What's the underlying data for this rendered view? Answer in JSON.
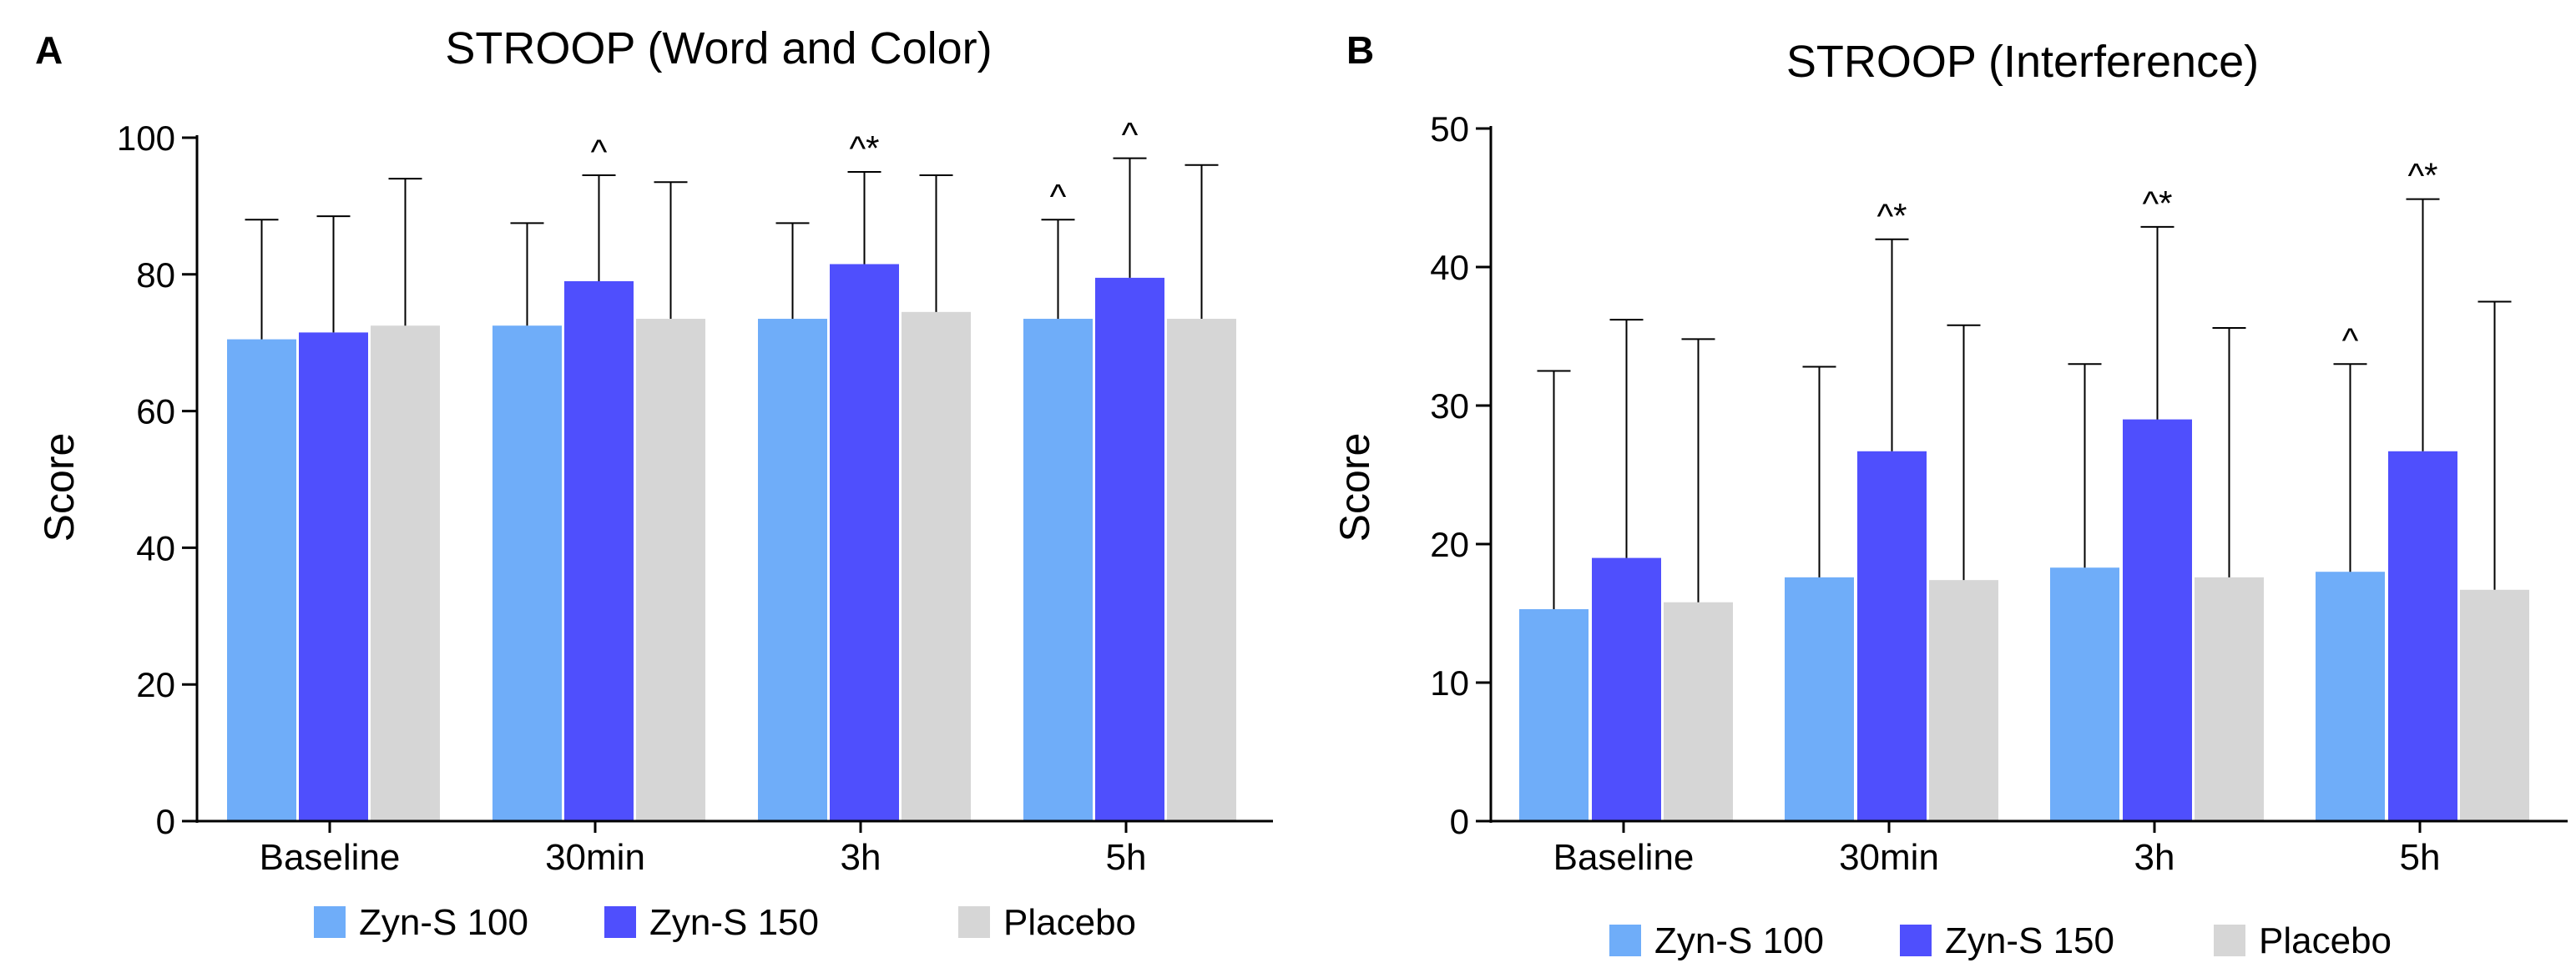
{
  "colors": {
    "zyn_s_100": "#6fadf9",
    "zyn_s_150": "#4f4ffd",
    "placebo": "#d6d6d6",
    "axis": "#000000"
  },
  "legend": [
    "Zyn-S 100",
    "Zyn-S 150",
    "Placebo"
  ],
  "chart_data": [
    {
      "panel_label": "A",
      "type": "bar",
      "title": "STROOP (Word and Color)",
      "xlabel": "",
      "ylabel": "Score",
      "ylim": [
        0,
        100
      ],
      "yticks": [
        "0",
        "20",
        "40",
        "60",
        "80",
        "100"
      ],
      "categories": [
        "Baseline",
        "30min",
        "3h",
        "5h"
      ],
      "series": [
        {
          "name": "Zyn-S 100",
          "values": [
            70.5,
            72.5,
            73.5,
            73.5
          ],
          "error": [
            17.5,
            15,
            14,
            14.5
          ],
          "marks": [
            "",
            "",
            "",
            "^"
          ]
        },
        {
          "name": "Zyn-S 150",
          "values": [
            71.5,
            79,
            81.5,
            79.5
          ],
          "error": [
            17,
            15.5,
            13.5,
            17.5
          ],
          "marks": [
            "",
            "^",
            "^*",
            "^"
          ]
        },
        {
          "name": "Placebo",
          "values": [
            72.5,
            73.5,
            74.5,
            73.5
          ],
          "error": [
            21.5,
            20,
            20,
            22.5
          ],
          "marks": [
            "",
            "",
            "",
            ""
          ]
        }
      ]
    },
    {
      "panel_label": "B",
      "type": "bar",
      "title": "STROOP (Interference)",
      "xlabel": "",
      "ylabel": "Score",
      "ylim": [
        0,
        50
      ],
      "yticks": [
        "0",
        "10",
        "20",
        "30",
        "40",
        "50"
      ],
      "categories": [
        "Baseline",
        "30min",
        "3h",
        "5h"
      ],
      "series": [
        {
          "name": "Zyn-S 100",
          "values": [
            15.3,
            17.6,
            18.3,
            18
          ],
          "error": [
            17.2,
            15.2,
            14.7,
            15
          ],
          "marks": [
            "",
            "",
            "",
            "^"
          ]
        },
        {
          "name": "Zyn-S 150",
          "values": [
            19,
            26.7,
            29,
            26.7
          ],
          "error": [
            17.2,
            15.3,
            13.9,
            18.2
          ],
          "marks": [
            "",
            "^*",
            "^*",
            "^*"
          ]
        },
        {
          "name": "Placebo",
          "values": [
            15.8,
            17.4,
            17.6,
            16.7
          ],
          "error": [
            19,
            18.4,
            18,
            20.8
          ],
          "marks": [
            "",
            "",
            "",
            ""
          ]
        }
      ]
    }
  ]
}
